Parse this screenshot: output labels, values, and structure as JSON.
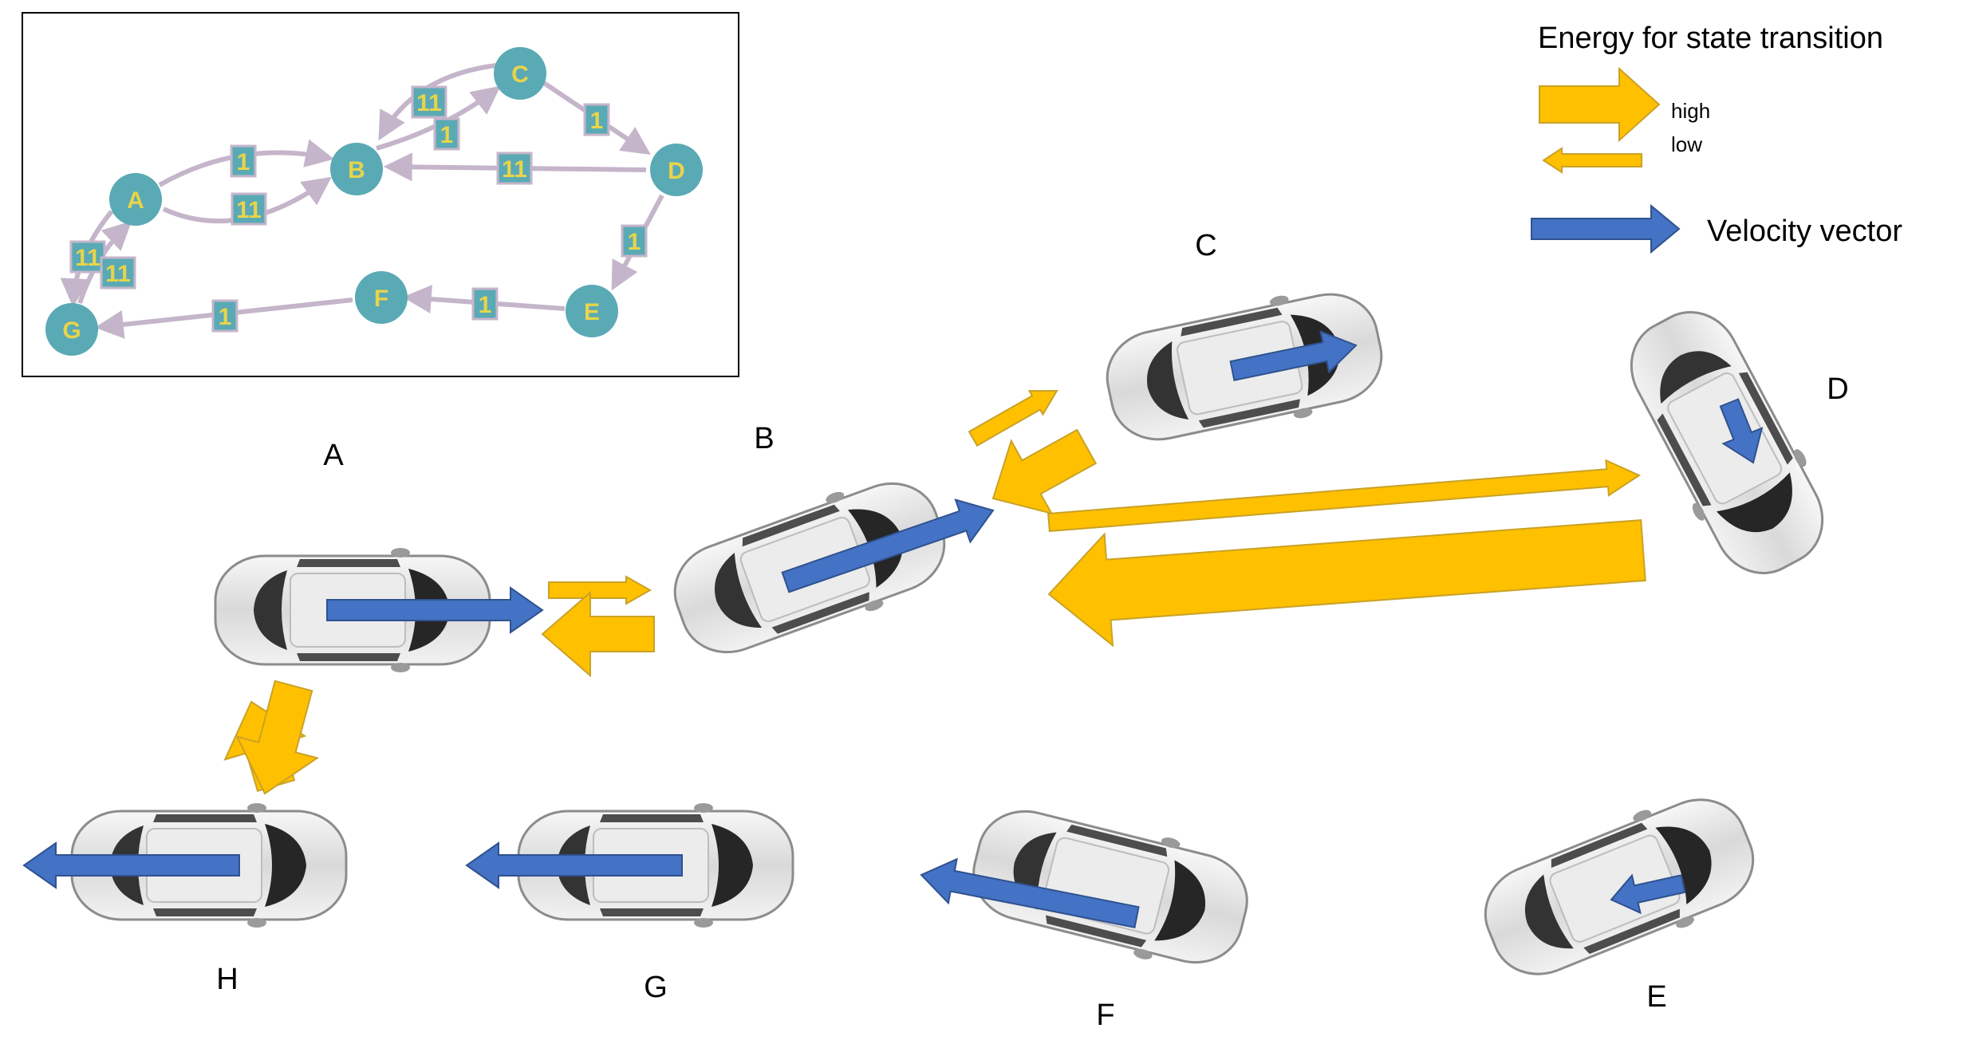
{
  "legend": {
    "title": "Energy for state transition",
    "high": "high",
    "low": "low",
    "velocity": "Velocity vector"
  },
  "colors": {
    "energy_arrow": "#ffc000",
    "energy_arrow_edge": "#c9a227",
    "velocity_arrow": "#4472c4",
    "velocity_arrow_edge": "#2f528f",
    "node_fill": "#5aaab5",
    "node_label": "#e8d44a",
    "edge": "#c5b5ca",
    "weight_box": "#5aaab5",
    "weight_border": "#c5b5ca"
  },
  "graph": {
    "nodes": [
      {
        "id": "A",
        "label": "A"
      },
      {
        "id": "B",
        "label": "B"
      },
      {
        "id": "C",
        "label": "C"
      },
      {
        "id": "D",
        "label": "D"
      },
      {
        "id": "E",
        "label": "E"
      },
      {
        "id": "F",
        "label": "F"
      },
      {
        "id": "G",
        "label": "G"
      }
    ],
    "edges": [
      {
        "from": "A",
        "to": "B",
        "weight": "1"
      },
      {
        "from": "A",
        "to": "B",
        "weight": "11"
      },
      {
        "from": "B",
        "to": "C",
        "weight": "1"
      },
      {
        "from": "C",
        "to": "B",
        "weight": "11"
      },
      {
        "from": "C",
        "to": "D",
        "weight": "1"
      },
      {
        "from": "D",
        "to": "B",
        "weight": "11"
      },
      {
        "from": "D",
        "to": "E",
        "weight": "1"
      },
      {
        "from": "E",
        "to": "F",
        "weight": "1"
      },
      {
        "from": "F",
        "to": "G",
        "weight": "1"
      },
      {
        "from": "A",
        "to": "G",
        "weight": "11"
      },
      {
        "from": "G",
        "to": "A",
        "weight": "11"
      }
    ]
  },
  "cars": [
    {
      "id": "A",
      "label": "A",
      "velocity_icon": "velocity-arrow-icon"
    },
    {
      "id": "B",
      "label": "B",
      "velocity_icon": "velocity-arrow-icon"
    },
    {
      "id": "C",
      "label": "C",
      "velocity_icon": "velocity-arrow-icon"
    },
    {
      "id": "D",
      "label": "D",
      "velocity_icon": "velocity-arrow-icon"
    },
    {
      "id": "E",
      "label": "E",
      "velocity_icon": "velocity-arrow-icon"
    },
    {
      "id": "F",
      "label": "F",
      "velocity_icon": "velocity-arrow-icon"
    },
    {
      "id": "G",
      "label": "G",
      "velocity_icon": "velocity-arrow-icon"
    },
    {
      "id": "H",
      "label": "H",
      "velocity_icon": "velocity-arrow-icon"
    }
  ]
}
